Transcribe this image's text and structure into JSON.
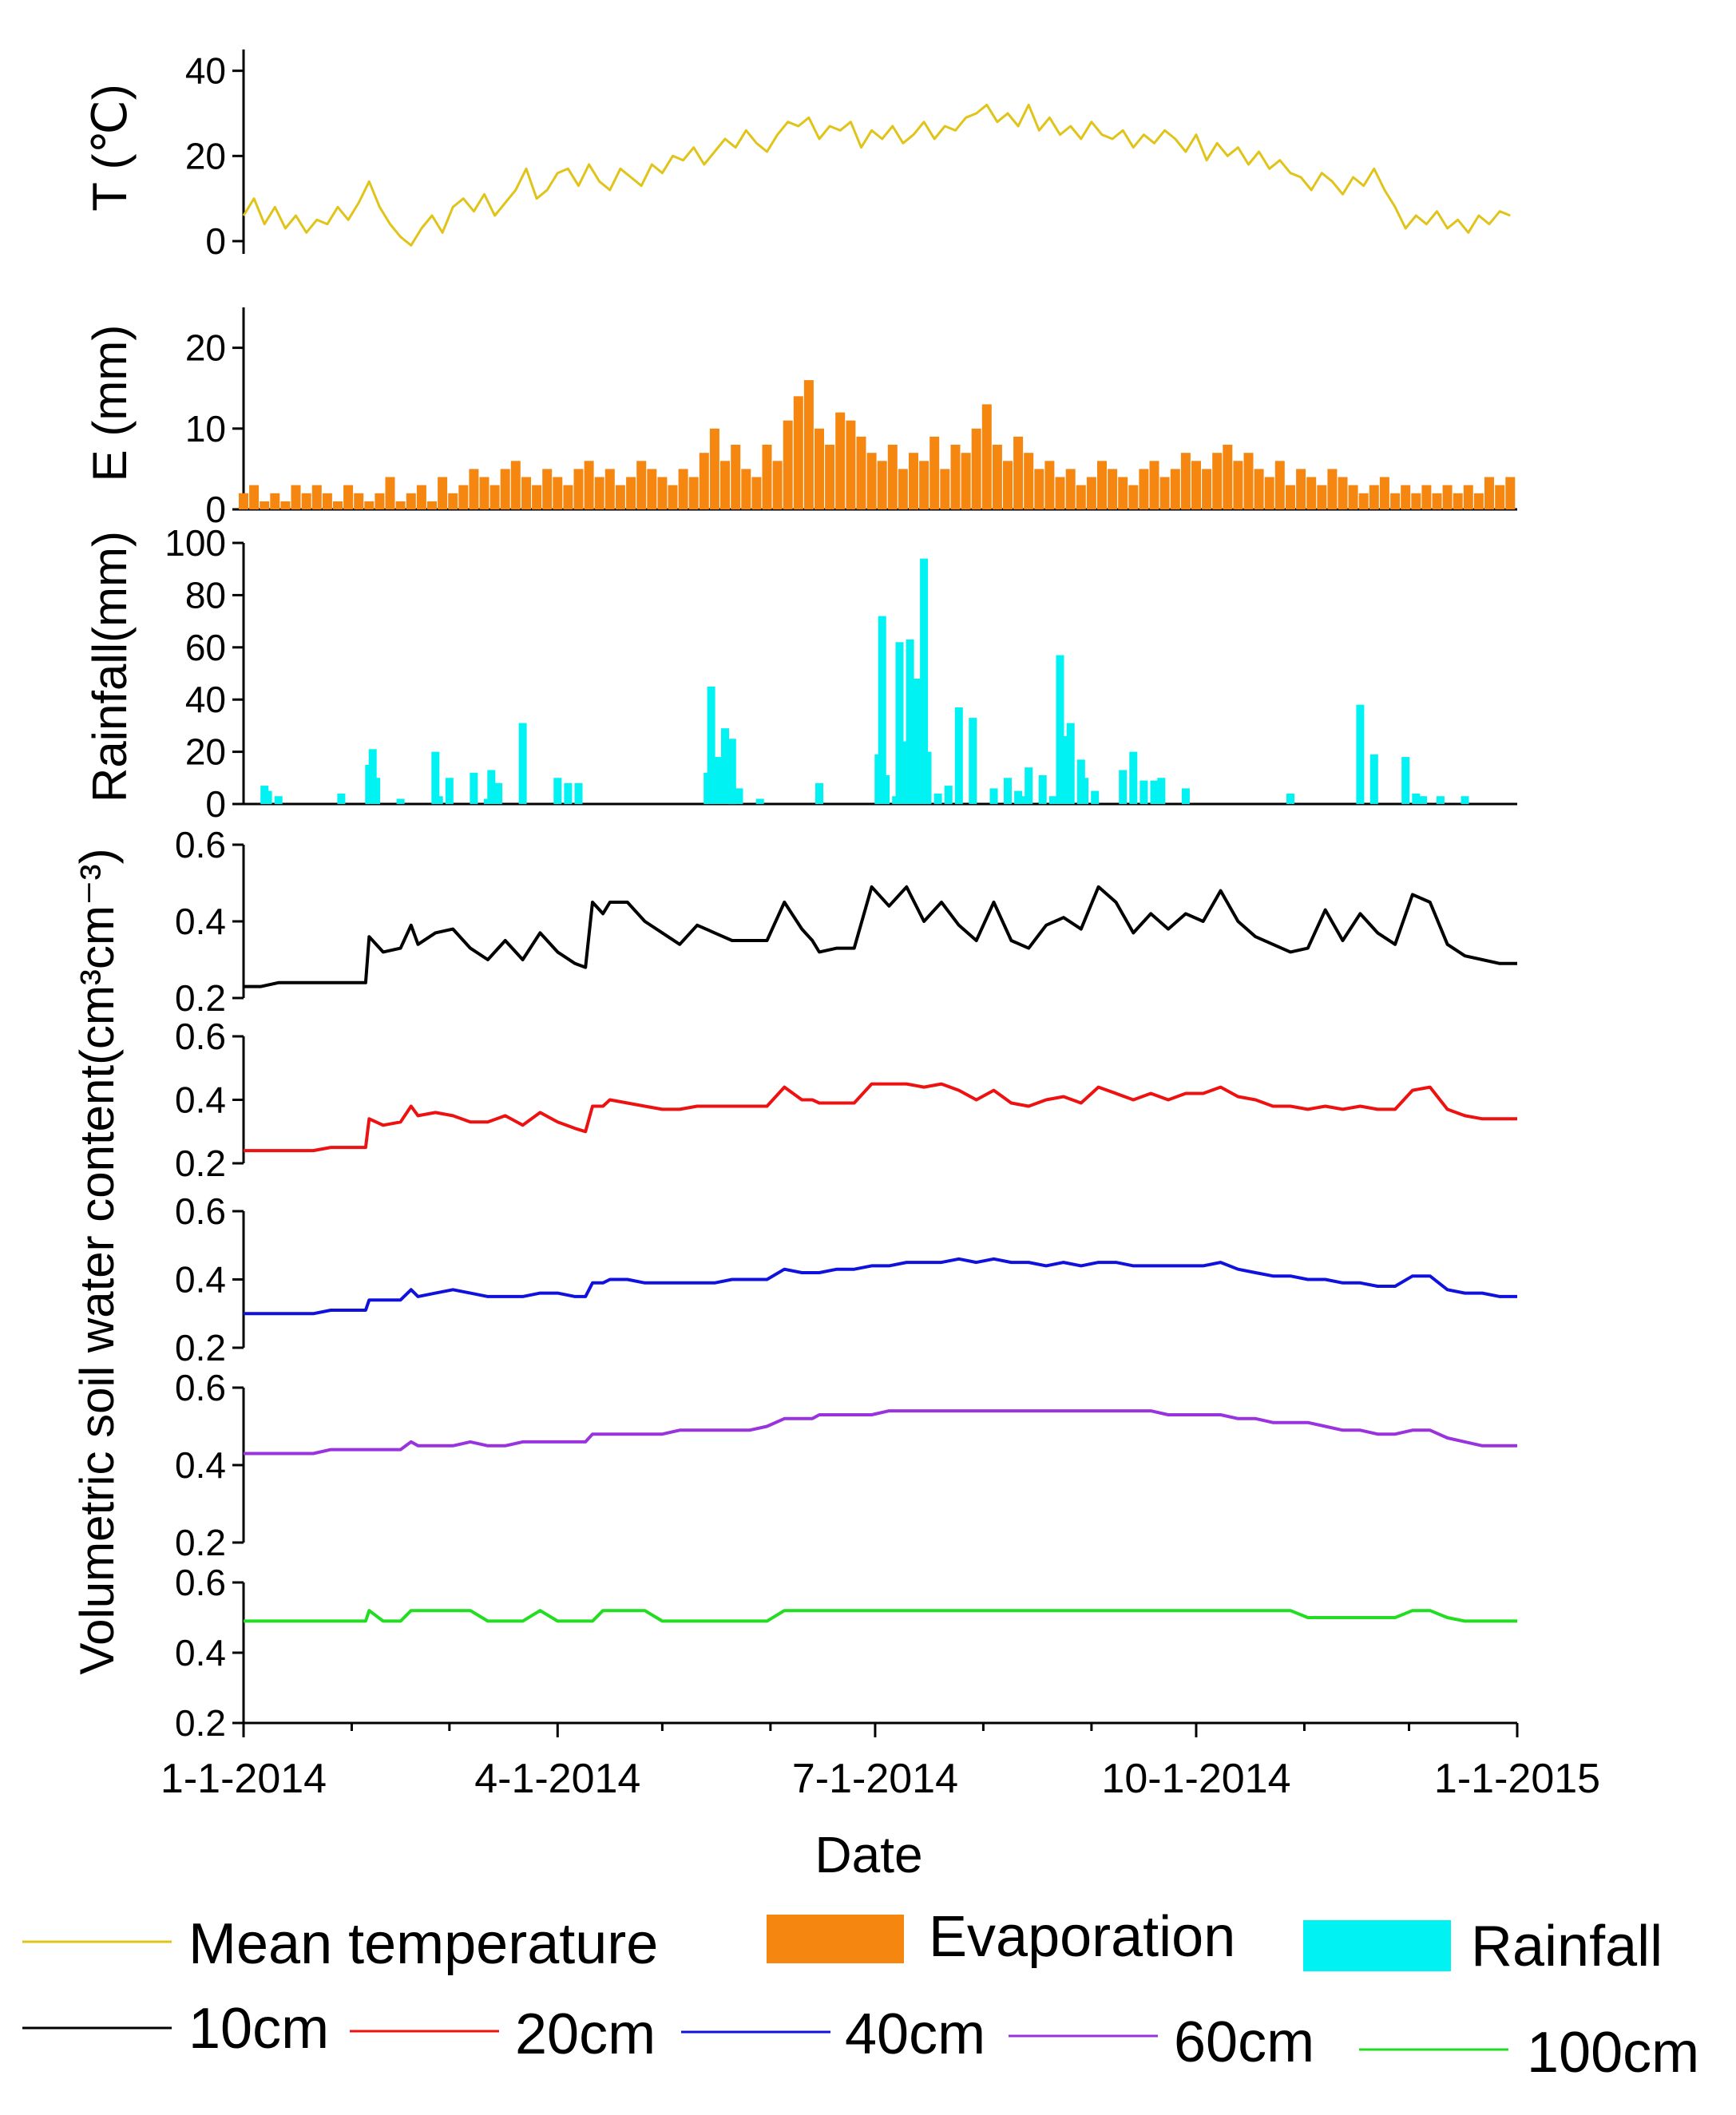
{
  "chart_data": [
    {
      "id": "temperature",
      "type": "line",
      "ylabel": "T (℃)",
      "ylim": [
        -3,
        45
      ],
      "yticks": [
        0,
        20,
        40
      ],
      "color": "#e0c419",
      "series_name": "Mean temperature",
      "x_days": [
        0,
        3,
        6,
        9,
        12,
        15,
        18,
        21,
        24,
        27,
        30,
        33,
        36,
        39,
        42,
        45,
        48,
        51,
        54,
        57,
        60,
        63,
        66,
        69,
        72,
        75,
        78,
        81,
        84,
        87,
        90,
        93,
        96,
        99,
        102,
        105,
        108,
        111,
        114,
        117,
        120,
        123,
        126,
        129,
        132,
        135,
        138,
        141,
        144,
        147,
        150,
        153,
        156,
        159,
        162,
        165,
        168,
        171,
        174,
        177,
        180,
        183,
        186,
        189,
        192,
        195,
        198,
        201,
        204,
        207,
        210,
        213,
        216,
        219,
        222,
        225,
        228,
        231,
        234,
        237,
        240,
        243,
        246,
        249,
        252,
        255,
        258,
        261,
        264,
        267,
        270,
        273,
        276,
        279,
        282,
        285,
        288,
        291,
        294,
        297,
        300,
        303,
        306,
        309,
        312,
        315,
        318,
        321,
        324,
        327,
        330,
        333,
        336,
        339,
        342,
        345,
        348,
        351,
        354,
        357,
        360,
        363
      ],
      "values": [
        6,
        10,
        4,
        8,
        3,
        6,
        2,
        5,
        4,
        8,
        5,
        9,
        14,
        8,
        4,
        1,
        -1,
        3,
        6,
        2,
        8,
        10,
        7,
        11,
        6,
        9,
        12,
        17,
        10,
        12,
        16,
        17,
        13,
        18,
        14,
        12,
        17,
        15,
        13,
        18,
        16,
        20,
        19,
        22,
        18,
        21,
        24,
        22,
        26,
        23,
        21,
        25,
        28,
        27,
        29,
        24,
        27,
        26,
        28,
        22,
        26,
        24,
        27,
        23,
        25,
        28,
        24,
        27,
        26,
        29,
        30,
        32,
        28,
        30,
        27,
        32,
        26,
        29,
        25,
        27,
        24,
        28,
        25,
        24,
        26,
        22,
        25,
        23,
        26,
        24,
        21,
        25,
        19,
        23,
        20,
        22,
        18,
        21,
        17,
        19,
        16,
        15,
        12,
        16,
        14,
        11,
        15,
        13,
        17,
        12,
        8,
        3,
        6,
        4,
        7,
        3,
        5,
        2,
        6,
        4,
        7,
        6
      ],
      "series": [
        {
          "name": "Mean temperature",
          "color": "#e0c419"
        }
      ]
    },
    {
      "id": "evaporation",
      "type": "bar",
      "ylabel": "E (mm)",
      "ylim": [
        0,
        25
      ],
      "yticks": [
        0,
        10,
        20
      ],
      "color": "#f5860f",
      "series_name": "Evaporation",
      "x_days": [
        0,
        3,
        6,
        9,
        12,
        15,
        18,
        21,
        24,
        27,
        30,
        33,
        36,
        39,
        42,
        45,
        48,
        51,
        54,
        57,
        60,
        63,
        66,
        69,
        72,
        75,
        78,
        81,
        84,
        87,
        90,
        93,
        96,
        99,
        102,
        105,
        108,
        111,
        114,
        117,
        120,
        123,
        126,
        129,
        132,
        135,
        138,
        141,
        144,
        147,
        150,
        153,
        156,
        159,
        162,
        165,
        168,
        171,
        174,
        177,
        180,
        183,
        186,
        189,
        192,
        195,
        198,
        201,
        204,
        207,
        210,
        213,
        216,
        219,
        222,
        225,
        228,
        231,
        234,
        237,
        240,
        243,
        246,
        249,
        252,
        255,
        258,
        261,
        264,
        267,
        270,
        273,
        276,
        279,
        282,
        285,
        288,
        291,
        294,
        297,
        300,
        303,
        306,
        309,
        312,
        315,
        318,
        321,
        324,
        327,
        330,
        333,
        336,
        339,
        342,
        345,
        348,
        351,
        354,
        357,
        360,
        363
      ],
      "values": [
        2,
        3,
        1,
        2,
        1,
        3,
        2,
        3,
        2,
        1,
        3,
        2,
        1,
        2,
        4,
        1,
        2,
        3,
        1,
        4,
        2,
        3,
        5,
        4,
        3,
        5,
        6,
        4,
        3,
        5,
        4,
        3,
        5,
        6,
        4,
        5,
        3,
        4,
        6,
        5,
        4,
        3,
        5,
        4,
        7,
        10,
        6,
        8,
        5,
        4,
        8,
        6,
        11,
        14,
        16,
        10,
        8,
        12,
        11,
        9,
        7,
        6,
        8,
        5,
        7,
        6,
        9,
        5,
        8,
        7,
        10,
        13,
        8,
        6,
        9,
        7,
        5,
        6,
        4,
        5,
        3,
        4,
        6,
        5,
        4,
        3,
        5,
        6,
        4,
        5,
        7,
        6,
        5,
        7,
        8,
        6,
        7,
        5,
        4,
        6,
        3,
        5,
        4,
        3,
        5,
        4,
        3,
        2,
        3,
        4,
        2,
        3,
        2,
        3,
        2,
        3,
        2,
        3,
        2,
        4,
        3,
        4
      ],
      "series": [
        {
          "name": "Evaporation",
          "color": "#f5860f"
        }
      ]
    },
    {
      "id": "rainfall",
      "type": "bar",
      "ylabel": "Rainfall(mm)",
      "ylim": [
        0,
        100
      ],
      "yticks": [
        0,
        20,
        40,
        60,
        80,
        100
      ],
      "color": "#00f2f2",
      "series_name": "Rainfall",
      "x_days": [
        6,
        7,
        10,
        28,
        36,
        37,
        38,
        45,
        55,
        56,
        59,
        66,
        70,
        71,
        73,
        80,
        90,
        93,
        96,
        133,
        134,
        136,
        138,
        140,
        142,
        148,
        165,
        182,
        183,
        184,
        188,
        187,
        189,
        191,
        193,
        195,
        196,
        199,
        202,
        205,
        209,
        215,
        219,
        222,
        224,
        225,
        229,
        232,
        234,
        235,
        237,
        240,
        241,
        244,
        252,
        255,
        258,
        261,
        263,
        270,
        300,
        320,
        324,
        333,
        336,
        337,
        338,
        343,
        350
      ],
      "values": [
        7,
        5,
        3,
        4,
        15,
        21,
        10,
        2,
        20,
        3,
        10,
        12,
        2,
        13,
        8,
        31,
        10,
        8,
        8,
        12,
        45,
        18,
        29,
        25,
        6,
        2,
        8,
        19,
        72,
        11,
        62,
        3,
        24,
        63,
        48,
        94,
        20,
        4,
        7,
        37,
        33,
        6,
        10,
        5,
        3,
        14,
        11,
        3,
        57,
        26,
        31,
        17,
        10,
        5,
        13,
        20,
        9,
        9,
        10,
        6,
        4,
        38,
        19,
        18,
        4,
        2,
        3,
        3,
        3
      ],
      "series": [
        {
          "name": "Rainfall",
          "color": "#00f2f2"
        }
      ]
    },
    {
      "id": "swc",
      "type": "line",
      "ylabel": "Volumetric soil water content(cm³cm⁻³)",
      "xlabel": "Date",
      "ylim": [
        0.2,
        0.6
      ],
      "yticks": [
        0.2,
        0.4,
        0.6
      ],
      "x_tick_days": [
        0,
        90,
        181,
        273,
        365
      ],
      "x_tick_labels": [
        "1-1-2014",
        "4-1-2014",
        "7-1-2014",
        "10-1-2014",
        "1-1-2015"
      ],
      "x_minor_days": [
        31,
        59,
        120,
        151,
        212,
        243,
        304,
        334
      ],
      "x_days": [
        0,
        5,
        10,
        15,
        20,
        25,
        30,
        35,
        36,
        40,
        45,
        48,
        50,
        55,
        60,
        65,
        70,
        75,
        80,
        85,
        90,
        95,
        98,
        100,
        103,
        105,
        110,
        115,
        120,
        125,
        130,
        135,
        140,
        145,
        150,
        155,
        160,
        163,
        165,
        170,
        175,
        180,
        185,
        190,
        195,
        200,
        205,
        210,
        215,
        220,
        225,
        230,
        235,
        240,
        245,
        250,
        255,
        260,
        265,
        270,
        275,
        280,
        285,
        290,
        295,
        300,
        305,
        310,
        315,
        320,
        325,
        330,
        335,
        340,
        345,
        350,
        355,
        360,
        365
      ],
      "series": [
        {
          "name": "10cm",
          "color": "#000000",
          "values": [
            0.23,
            0.23,
            0.24,
            0.24,
            0.24,
            0.24,
            0.24,
            0.24,
            0.36,
            0.32,
            0.33,
            0.39,
            0.34,
            0.37,
            0.38,
            0.33,
            0.3,
            0.35,
            0.3,
            0.37,
            0.32,
            0.29,
            0.28,
            0.45,
            0.42,
            0.45,
            0.45,
            0.4,
            0.37,
            0.34,
            0.39,
            0.37,
            0.35,
            0.35,
            0.35,
            0.45,
            0.38,
            0.35,
            0.32,
            0.33,
            0.33,
            0.49,
            0.44,
            0.49,
            0.4,
            0.45,
            0.39,
            0.35,
            0.45,
            0.35,
            0.33,
            0.39,
            0.41,
            0.38,
            0.49,
            0.45,
            0.37,
            0.42,
            0.38,
            0.42,
            0.4,
            0.48,
            0.4,
            0.36,
            0.34,
            0.32,
            0.33,
            0.43,
            0.35,
            0.42,
            0.37,
            0.34,
            0.47,
            0.45,
            0.34,
            0.31,
            0.3,
            0.29,
            0.29
          ]
        },
        {
          "name": "20cm",
          "color": "#ee1111",
          "values": [
            0.24,
            0.24,
            0.24,
            0.24,
            0.24,
            0.25,
            0.25,
            0.25,
            0.34,
            0.32,
            0.33,
            0.38,
            0.35,
            0.36,
            0.35,
            0.33,
            0.33,
            0.35,
            0.32,
            0.36,
            0.33,
            0.31,
            0.3,
            0.38,
            0.38,
            0.4,
            0.39,
            0.38,
            0.37,
            0.37,
            0.38,
            0.38,
            0.38,
            0.38,
            0.38,
            0.44,
            0.4,
            0.4,
            0.39,
            0.39,
            0.39,
            0.45,
            0.45,
            0.45,
            0.44,
            0.45,
            0.43,
            0.4,
            0.43,
            0.39,
            0.38,
            0.4,
            0.41,
            0.39,
            0.44,
            0.42,
            0.4,
            0.42,
            0.4,
            0.42,
            0.42,
            0.44,
            0.41,
            0.4,
            0.38,
            0.38,
            0.37,
            0.38,
            0.37,
            0.38,
            0.37,
            0.37,
            0.43,
            0.44,
            0.37,
            0.35,
            0.34,
            0.34,
            0.34
          ]
        },
        {
          "name": "40cm",
          "color": "#1111dd",
          "values": [
            0.3,
            0.3,
            0.3,
            0.3,
            0.3,
            0.31,
            0.31,
            0.31,
            0.34,
            0.34,
            0.34,
            0.37,
            0.35,
            0.36,
            0.37,
            0.36,
            0.35,
            0.35,
            0.35,
            0.36,
            0.36,
            0.35,
            0.35,
            0.39,
            0.39,
            0.4,
            0.4,
            0.39,
            0.39,
            0.39,
            0.39,
            0.39,
            0.4,
            0.4,
            0.4,
            0.43,
            0.42,
            0.42,
            0.42,
            0.43,
            0.43,
            0.44,
            0.44,
            0.45,
            0.45,
            0.45,
            0.46,
            0.45,
            0.46,
            0.45,
            0.45,
            0.44,
            0.45,
            0.44,
            0.45,
            0.45,
            0.44,
            0.44,
            0.44,
            0.44,
            0.44,
            0.45,
            0.43,
            0.42,
            0.41,
            0.41,
            0.4,
            0.4,
            0.39,
            0.39,
            0.38,
            0.38,
            0.41,
            0.41,
            0.37,
            0.36,
            0.36,
            0.35,
            0.35
          ]
        },
        {
          "name": "60cm",
          "color": "#9933dd",
          "values": [
            0.43,
            0.43,
            0.43,
            0.43,
            0.43,
            0.44,
            0.44,
            0.44,
            0.44,
            0.44,
            0.44,
            0.46,
            0.45,
            0.45,
            0.45,
            0.46,
            0.45,
            0.45,
            0.46,
            0.46,
            0.46,
            0.46,
            0.46,
            0.48,
            0.48,
            0.48,
            0.48,
            0.48,
            0.48,
            0.49,
            0.49,
            0.49,
            0.49,
            0.49,
            0.5,
            0.52,
            0.52,
            0.52,
            0.53,
            0.53,
            0.53,
            0.53,
            0.54,
            0.54,
            0.54,
            0.54,
            0.54,
            0.54,
            0.54,
            0.54,
            0.54,
            0.54,
            0.54,
            0.54,
            0.54,
            0.54,
            0.54,
            0.54,
            0.53,
            0.53,
            0.53,
            0.53,
            0.52,
            0.52,
            0.51,
            0.51,
            0.51,
            0.5,
            0.49,
            0.49,
            0.48,
            0.48,
            0.49,
            0.49,
            0.47,
            0.46,
            0.45,
            0.45,
            0.45
          ]
        },
        {
          "name": "100cm",
          "color": "#22dd22",
          "values": [
            0.49,
            0.49,
            0.49,
            0.49,
            0.49,
            0.49,
            0.49,
            0.49,
            0.52,
            0.49,
            0.49,
            0.52,
            0.52,
            0.52,
            0.52,
            0.52,
            0.49,
            0.49,
            0.49,
            0.52,
            0.49,
            0.49,
            0.49,
            0.49,
            0.52,
            0.52,
            0.52,
            0.52,
            0.49,
            0.49,
            0.49,
            0.49,
            0.49,
            0.49,
            0.49,
            0.52,
            0.52,
            0.52,
            0.52,
            0.52,
            0.52,
            0.52,
            0.52,
            0.52,
            0.52,
            0.52,
            0.52,
            0.52,
            0.52,
            0.52,
            0.52,
            0.52,
            0.52,
            0.52,
            0.52,
            0.52,
            0.52,
            0.52,
            0.52,
            0.52,
            0.52,
            0.52,
            0.52,
            0.52,
            0.52,
            0.52,
            0.5,
            0.5,
            0.5,
            0.5,
            0.5,
            0.5,
            0.52,
            0.52,
            0.5,
            0.49,
            0.49,
            0.49,
            0.49
          ]
        }
      ]
    }
  ],
  "labels": {
    "t_axis_title": "T (℃)",
    "e_axis_title": "E (mm)",
    "rain_axis_title": "Rainfall(mm)",
    "swc_axis_title": "Volumetric soil water content(cm³cm⁻³)",
    "xlabel": "Date"
  },
  "legend": {
    "row1": [
      {
        "label": "Mean temperature",
        "color": "#e0c419",
        "kind": "line"
      },
      {
        "label": "Evaporation",
        "color": "#f5860f",
        "kind": "box"
      },
      {
        "label": "Rainfall",
        "color": "#00f2f2",
        "kind": "box"
      }
    ],
    "row2": [
      {
        "label": "10cm",
        "color": "#000000",
        "kind": "line"
      },
      {
        "label": "20cm",
        "color": "#ee1111",
        "kind": "line"
      },
      {
        "label": "40cm",
        "color": "#1111dd",
        "kind": "line"
      },
      {
        "label": "60cm",
        "color": "#9933dd",
        "kind": "line"
      },
      {
        "label": "100cm",
        "color": "#22dd22",
        "kind": "line"
      }
    ]
  }
}
